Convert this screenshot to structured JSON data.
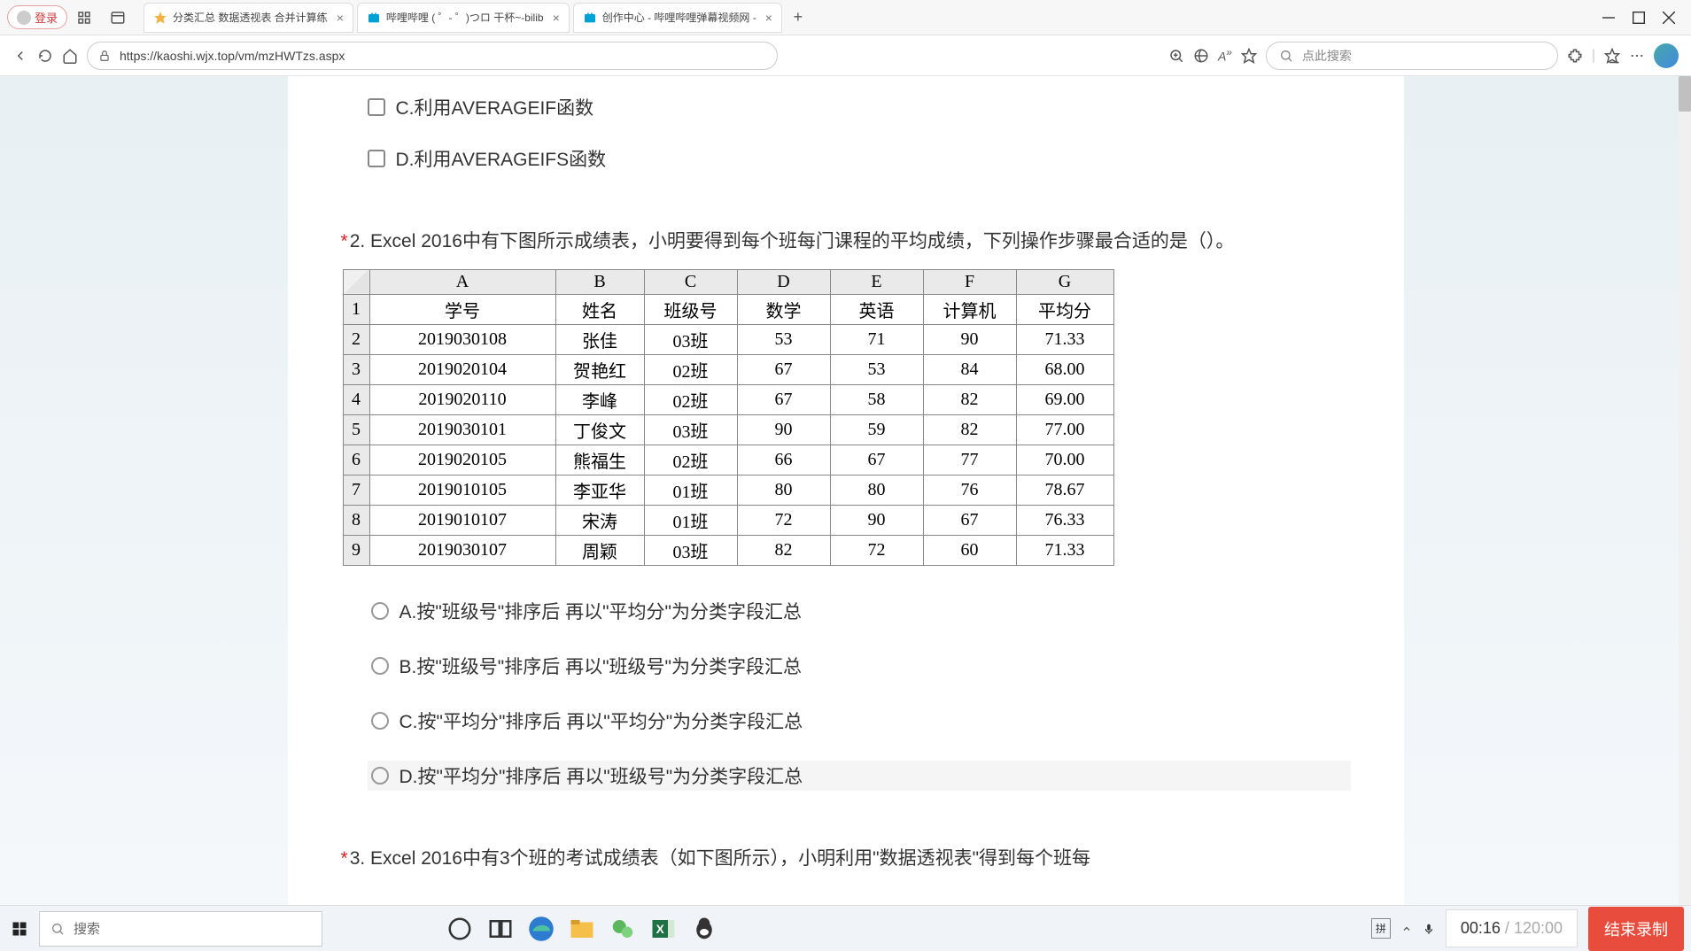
{
  "titlebar": {
    "login_label": "登录",
    "tabs": [
      {
        "title": "分类汇总 数据透视表 合并计算练",
        "favicon_color": "#f5b041"
      },
      {
        "title": "哔哩哔哩 ( ゜- ゜)つロ 干杯~-bilib",
        "favicon_color": "#00a1d6"
      },
      {
        "title": "创作中心 - 哔哩哔哩弹幕视频网 -",
        "favicon_color": "#00a1d6"
      }
    ]
  },
  "addressbar": {
    "url": "https://kaoshi.wjx.top/vm/mzHWTzs.aspx",
    "search_placeholder": "点此搜索"
  },
  "q1": {
    "options": [
      "C.利用AVERAGEIF函数",
      "D.利用AVERAGEIFS函数"
    ]
  },
  "q2": {
    "title": "2. Excel 2016中有下图所示成绩表，小明要得到每个班每门课程的平均成绩，下列操作步骤最合适的是（）。",
    "table": {
      "cols": [
        "A",
        "B",
        "C",
        "D",
        "E",
        "F",
        "G"
      ],
      "headers": [
        "学号",
        "姓名",
        "班级号",
        "数学",
        "英语",
        "计算机",
        "平均分"
      ],
      "rows": [
        [
          "2019030108",
          "张佳",
          "03班",
          "53",
          "71",
          "90",
          "71.33"
        ],
        [
          "2019020104",
          "贺艳红",
          "02班",
          "67",
          "53",
          "84",
          "68.00"
        ],
        [
          "2019020110",
          "李峰",
          "02班",
          "67",
          "58",
          "82",
          "69.00"
        ],
        [
          "2019030101",
          "丁俊文",
          "03班",
          "90",
          "59",
          "82",
          "77.00"
        ],
        [
          "2019020105",
          "熊福生",
          "02班",
          "66",
          "67",
          "77",
          "70.00"
        ],
        [
          "2019010105",
          "李亚华",
          "01班",
          "80",
          "80",
          "76",
          "78.67"
        ],
        [
          "2019010107",
          "宋涛",
          "01班",
          "72",
          "90",
          "67",
          "76.33"
        ],
        [
          "2019030107",
          "周颖",
          "03班",
          "82",
          "72",
          "60",
          "71.33"
        ]
      ]
    },
    "options": [
      "A.按\"班级号\"排序后 再以\"平均分\"为分类字段汇总",
      "B.按\"班级号\"排序后 再以\"班级号\"为分类字段汇总",
      "C.按\"平均分\"排序后 再以\"平均分\"为分类字段汇总",
      "D.按\"平均分\"排序后 再以\"班级号\"为分类字段汇总"
    ]
  },
  "q3": {
    "partial": "3. Excel 2016中有3个班的考试成绩表（如下图所示），小明利用\"数据透视表\"得到每个班每"
  },
  "taskbar": {
    "search_placeholder": "搜索"
  },
  "recording": {
    "elapsed": "00:16",
    "total": "120:00",
    "end_label": "结束录制"
  },
  "tray": {
    "ime": "拼"
  }
}
